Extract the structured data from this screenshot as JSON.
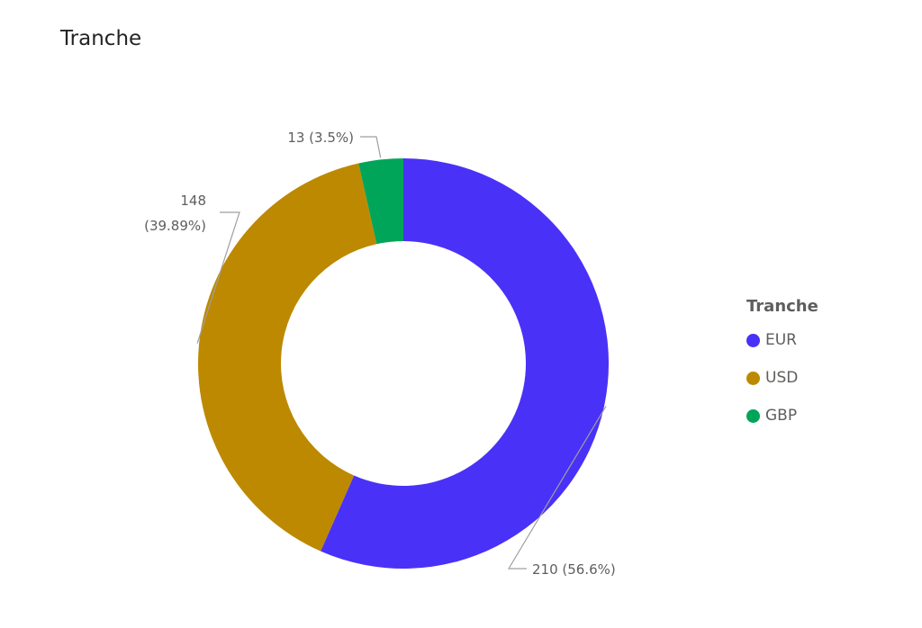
{
  "visual": {
    "title": "Tranche"
  },
  "legend": {
    "title": "Tranche"
  },
  "chart_data": {
    "type": "pie",
    "variant": "donut",
    "title": "Tranche",
    "legend_title": "Tranche",
    "legend_position": "right",
    "categories": [
      "EUR",
      "USD",
      "GBP"
    ],
    "values": [
      210,
      148,
      13
    ],
    "percent_labels": [
      "56.6%",
      "39.89%",
      "3.5%"
    ],
    "data_labels": [
      "210 (56.6%)",
      "148 (39.89%)",
      "13 (3.5%)"
    ],
    "colors": [
      "#4a31f7",
      "#bd8900",
      "#00a55a"
    ]
  }
}
